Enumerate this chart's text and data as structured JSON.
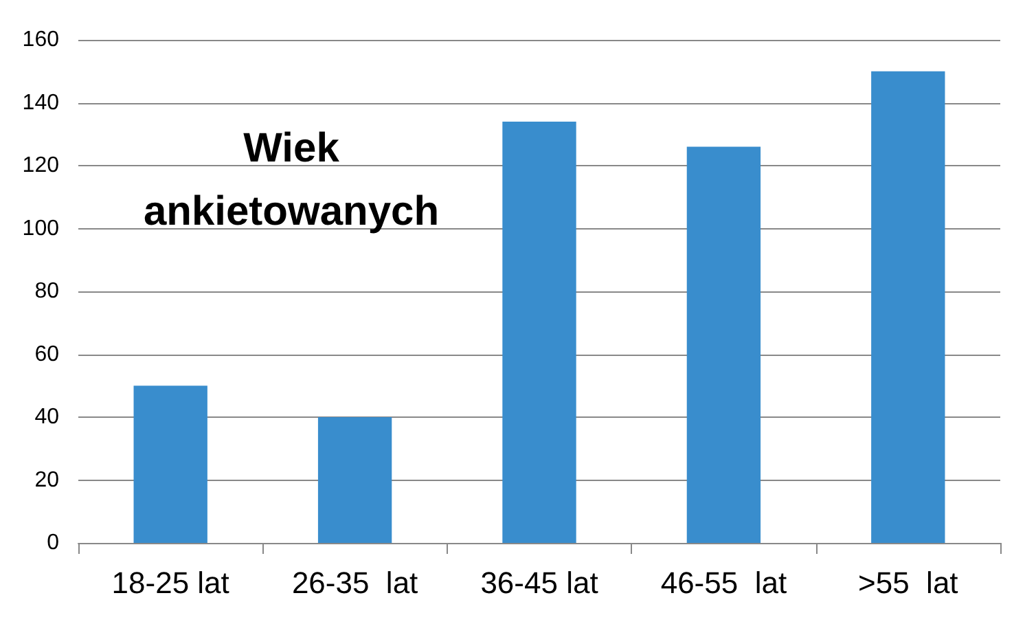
{
  "chart_data": {
    "type": "bar",
    "title": "Wiek\nankietowanych",
    "categories": [
      "18-25 lat",
      "26-35  lat",
      "36-45 lat",
      "46-55  lat",
      ">55  lat"
    ],
    "values": [
      50,
      40,
      134,
      126,
      150
    ],
    "color": "#398dcd",
    "ylim": [
      0,
      160
    ],
    "yticks": [
      0,
      20,
      40,
      60,
      80,
      100,
      120,
      140,
      160
    ],
    "grid": "y"
  }
}
